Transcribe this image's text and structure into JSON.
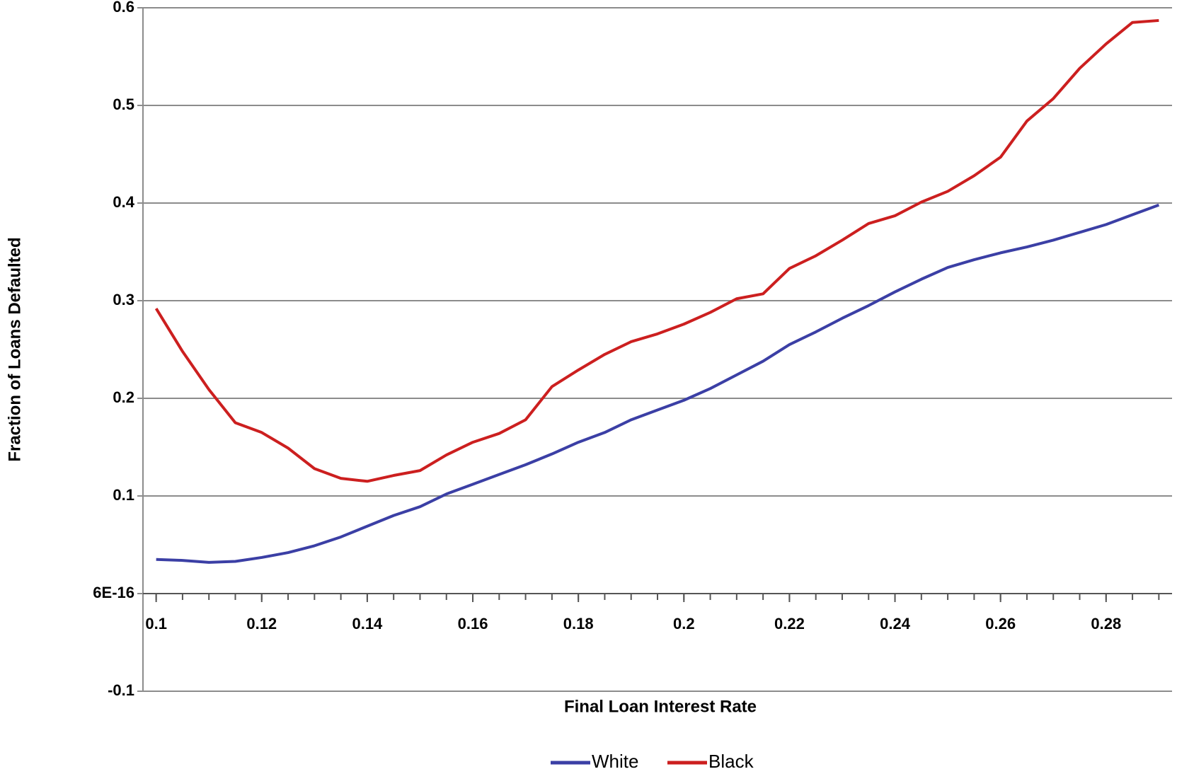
{
  "chart_data": {
    "type": "line",
    "x_label": "Final Loan Interest Rate",
    "y_label": "Fraction of Loans Defaulted",
    "x": [
      0.1,
      0.105,
      0.11,
      0.115,
      0.12,
      0.125,
      0.13,
      0.135,
      0.14,
      0.145,
      0.15,
      0.155,
      0.16,
      0.165,
      0.17,
      0.175,
      0.18,
      0.185,
      0.19,
      0.195,
      0.2,
      0.205,
      0.21,
      0.215,
      0.22,
      0.225,
      0.23,
      0.235,
      0.24,
      0.245,
      0.25,
      0.255,
      0.26,
      0.265,
      0.27,
      0.275,
      0.28,
      0.285,
      0.29
    ],
    "series": [
      {
        "name": "White",
        "color": "#3b3fa5",
        "values": [
          0.035,
          0.034,
          0.032,
          0.033,
          0.037,
          0.042,
          0.049,
          0.058,
          0.069,
          0.08,
          0.089,
          0.102,
          0.112,
          0.122,
          0.132,
          0.143,
          0.155,
          0.165,
          0.178,
          0.188,
          0.198,
          0.21,
          0.224,
          0.238,
          0.255,
          0.268,
          0.282,
          0.295,
          0.309,
          0.322,
          0.334,
          0.342,
          0.349,
          0.355,
          0.362,
          0.37,
          0.378,
          0.388,
          0.398
        ]
      },
      {
        "name": "Black",
        "color": "#cc1f1f",
        "values": [
          0.292,
          0.248,
          0.209,
          0.175,
          0.165,
          0.149,
          0.128,
          0.118,
          0.115,
          0.121,
          0.126,
          0.142,
          0.155,
          0.164,
          0.178,
          0.212,
          0.229,
          0.245,
          0.258,
          0.266,
          0.276,
          0.288,
          0.302,
          0.307,
          0.333,
          0.346,
          0.362,
          0.379,
          0.387,
          0.401,
          0.412,
          0.428,
          0.447,
          0.484,
          0.507,
          0.538,
          0.563,
          0.585,
          0.587
        ]
      }
    ],
    "xlim": [
      0.0975,
      0.2925
    ],
    "xticks": [
      0.1,
      0.12,
      0.14,
      0.16,
      0.18,
      0.2,
      0.22,
      0.24,
      0.26,
      0.28
    ],
    "ylim": [
      -0.1,
      0.6
    ],
    "yticks": [
      -0.1,
      {
        "value": 6e-16,
        "label": "6E-16"
      },
      0.1,
      0.2,
      0.3,
      0.4,
      0.5,
      0.6
    ],
    "grid": true,
    "legend": "bottom"
  }
}
